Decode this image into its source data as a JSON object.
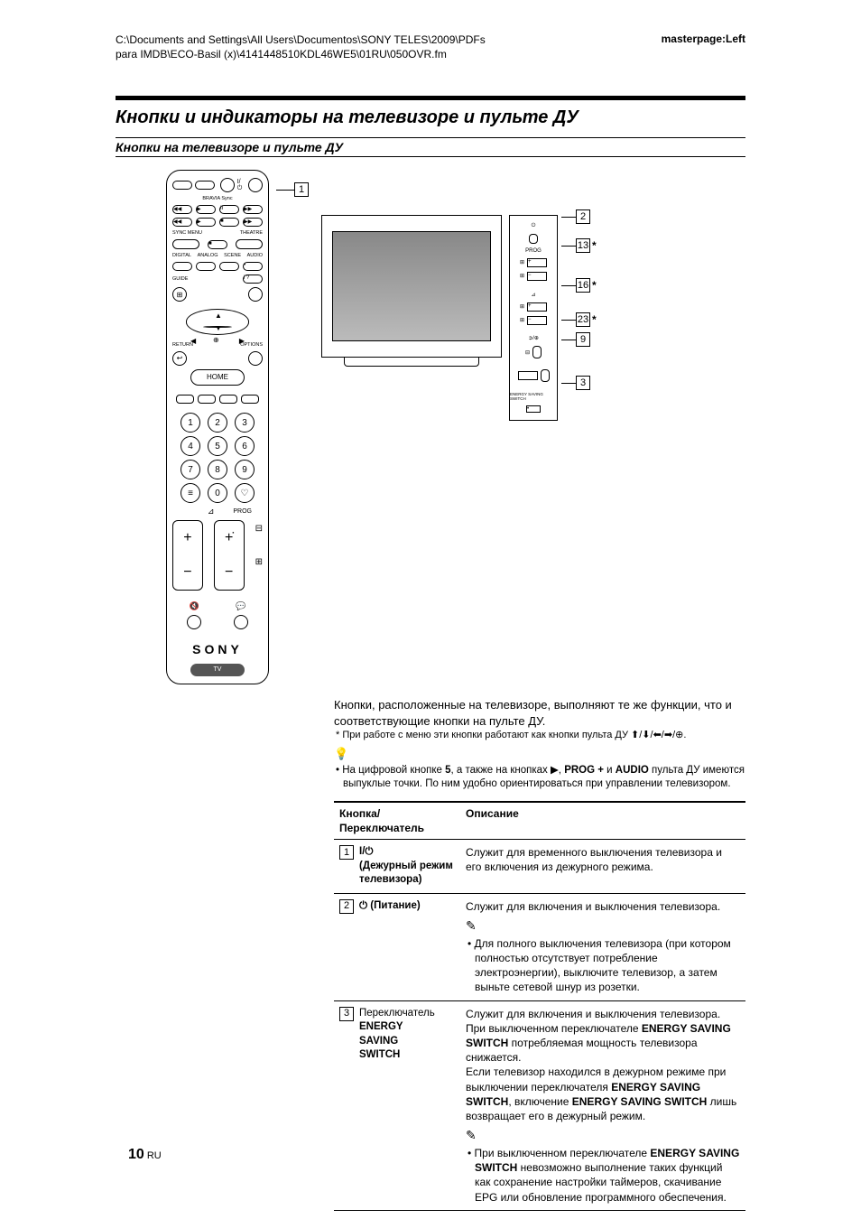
{
  "header": {
    "path": "C:\\Documents and Settings\\All Users\\Documentos\\SONY TELES\\2009\\PDFs para IMDB\\ECO-Basil (x)\\4141448510KDL46WE5\\01RU\\050OVR.fm",
    "master": "masterpage:Left"
  },
  "h1": "Кнопки и индикаторы на телевизоре и пульте ДУ",
  "h2": "Кнопки на телевизоре и пульте ДУ",
  "remote": {
    "bravia": "BRAVIA Sync",
    "sync": "SYNC MENU",
    "theatre": "THEATRE",
    "digital": "DIGITAL",
    "analog": "ANALOG",
    "scene": "SCENE",
    "audio": "AUDIO",
    "guide": "GUIDE",
    "return": "RETURN",
    "options": "OPTIONS",
    "home": "HOME",
    "prog": "PROG",
    "brand": "SONY",
    "tv": "TV",
    "callout1": "1"
  },
  "tv_callouts": [
    "2",
    "13",
    "16",
    "23",
    "9",
    "3"
  ],
  "caption": {
    "p1": "Кнопки, расположенные на телевизоре, выполняют те же функции, что и соответствующие кнопки на пульте ДУ.",
    "fn": "* При работе с меню эти кнопки работают как кнопки пульта ДУ ⬆/⬇/⬅/➡/⊕.",
    "tip1": "• На цифровой кнопке 5, а также на кнопках ▶, PROG + и AUDIO пульта ДУ имеются выпуклые точки. По ним удобно ориентироваться при управлении телевизором."
  },
  "table": {
    "head1": "Кнопка/\nПереключатель",
    "head2": "Описание",
    "rows": [
      {
        "id": "1",
        "label_html": "I/⏻<br><b>(Дежурный режим телевизора)</b>",
        "desc_html": "Служит для временного выключения телевизора и его включения из дежурного режима."
      },
      {
        "id": "2",
        "label_html": "⏻ <b>(Питание)</b>",
        "desc_html": "Служит для включения и выключения телевизора.",
        "note_html": "• Для полного выключения телевизора (при котором полностью отсутствует потребление электроэнергии), выключите телевизор, а затем выньте сетевой шнур из розетки."
      },
      {
        "id": "3",
        "label_html": "<span class='nonbold'>Переключатель</span><br><b>ENERGY<br>SAVING<br>SWITCH</b>",
        "desc_html": "Служит для включения и выключения телевизора.<br>При выключенном переключателе <b>ENERGY SAVING SWITCH</b> потребляемая мощность телевизора снижается.<br>Если телевизор находился в дежурном режиме при выключении переключателя <b>ENERGY SAVING SWITCH</b>, включение <b>ENERGY SAVING SWITCH</b> лишь возвращает его в дежурный режим.",
        "note_html": "• При выключенном переключателе <b>ENERGY SAVING SWITCH</b> невозможно выполнение таких функций как сохранение настройки таймеров, скачивание EPG или обновление программного обеспечения."
      }
    ]
  },
  "page": {
    "num": "10",
    "suffix": " RU"
  }
}
